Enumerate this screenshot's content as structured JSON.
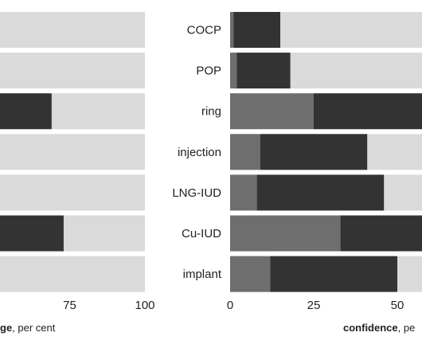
{
  "colors": {
    "background_bar": "#dadada",
    "dark": "#333333",
    "medium": "#6e6e6e",
    "text": "#222222"
  },
  "chart_data": [
    {
      "type": "bar",
      "orientation": "horizontal",
      "stacked": true,
      "partial": "cropped on left",
      "categories": [
        "COCP",
        "POP",
        "ring",
        "injection",
        "LNG-IUD",
        "Cu-IUD",
        "implant"
      ],
      "series": [
        {
          "values": [
            null,
            null,
            null,
            null,
            null,
            null,
            null
          ]
        },
        {
          "values": [
            null,
            null,
            69,
            null,
            null,
            73,
            null
          ]
        }
      ],
      "xlim": [
        0,
        100
      ],
      "xticks": [
        "75",
        "100"
      ],
      "xlabel_bold": "ge",
      "xlabel_rest": ", per cent"
    },
    {
      "type": "bar",
      "orientation": "horizontal",
      "stacked": true,
      "partial": "cropped on right",
      "categories": [
        "COCP",
        "POP",
        "ring",
        "injection",
        "LNG-IUD",
        "Cu-IUD",
        "implant"
      ],
      "series": [
        {
          "values": [
            1,
            2,
            25,
            9,
            8,
            33,
            12
          ]
        },
        {
          "values": [
            14,
            16,
            50,
            32,
            38,
            42,
            38
          ]
        }
      ],
      "xlim": [
        0,
        100
      ],
      "xticks": [
        "0",
        "25",
        "50"
      ],
      "xlabel_bold": "confidence",
      "xlabel_rest": ", pe"
    }
  ]
}
